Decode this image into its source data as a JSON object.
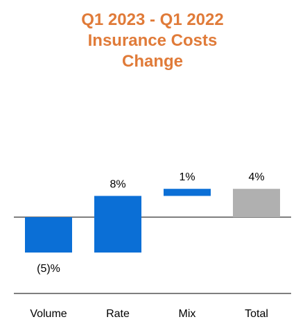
{
  "title_lines": [
    "Q1 2023 - Q1 2022",
    "Insurance Costs",
    "Change"
  ],
  "colors": {
    "title": "#E07B39",
    "bar_blue": "#0B6FD6",
    "bar_total": "#B0B0B0",
    "axis": "#555555"
  },
  "chart_data": {
    "type": "bar",
    "subtype": "waterfall",
    "title": "Q1 2023 - Q1 2022 Insurance Costs Change",
    "categories": [
      "Volume",
      "Rate",
      "Mix",
      "Total"
    ],
    "values": [
      -5,
      8,
      1,
      4
    ],
    "data_labels": [
      "(5)%",
      "8%",
      "1%",
      "4%"
    ],
    "total_index": 3,
    "unit": "%",
    "xlabel": "",
    "ylabel": "",
    "ylim": [
      -10,
      9
    ],
    "grid": false,
    "legend": "none"
  }
}
